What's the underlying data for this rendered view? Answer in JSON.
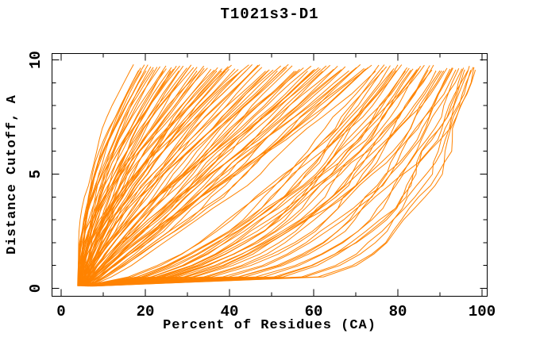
{
  "chart": {
    "title": "T1021s3-D1",
    "xlabel": "Percent of Residues (CA)",
    "ylabel": "Distance Cutoff, A"
  },
  "chart_data": {
    "type": "line",
    "title": "T1021s3-D1",
    "xlabel": "Percent of Residues (CA)",
    "ylabel": "Distance Cutoff, A",
    "legend": "none",
    "grid": false,
    "line_color": "#FF8300",
    "frame_color": "#000000",
    "background": "#ffffff",
    "x_axis": {
      "range": [
        -2.3,
        101.4
      ],
      "major_ticks": [
        0,
        20,
        40,
        60,
        80,
        100
      ],
      "minor_ticks": [
        10,
        30,
        50,
        70,
        90
      ],
      "tick_style": "inward-mirrored"
    },
    "y_axis": {
      "range": [
        -0.37,
        10.3
      ],
      "major_ticks": [
        0,
        5,
        10
      ],
      "minor_ticks": [
        1,
        2,
        3,
        4,
        6,
        7,
        8,
        9
      ],
      "tick_style": "inward-mirrored"
    },
    "curve_format": "Each curve is one predicted model: [end_pct_at_cutoff_9.8, shape_exponent, start_pct_at_cutoff_0.1, wiggle_phase]; percent(c) = start + (end-start)*((c-0.1)/(c_end-0.1))^shape, sampled at 0.5 A cutoff steps; curves converge near (5%, 0.2A) and fan out to 18-98% at the top",
    "n_curves": 132,
    "curves": [
      [
        17.2,
        2.25,
        3.9,
        0.7
      ],
      [
        18.4,
        2.05,
        4.3,
        2.1
      ],
      [
        19.1,
        1.95,
        4.0,
        3.6
      ],
      [
        19.8,
        2.1,
        4.6,
        5.2
      ],
      [
        20.6,
        1.88,
        4.2,
        1.4
      ],
      [
        21.3,
        1.75,
        5.0,
        4.8
      ],
      [
        22.0,
        1.92,
        4.4,
        0.3
      ],
      [
        22.8,
        1.7,
        4.9,
        2.9
      ],
      [
        23.5,
        1.85,
        4.1,
        5.7
      ],
      [
        24.2,
        1.62,
        5.3,
        1.8
      ],
      [
        25.0,
        1.78,
        4.5,
        4.1
      ],
      [
        25.9,
        1.55,
        5.6,
        0.9
      ],
      [
        26.7,
        1.72,
        4.2,
        3.2
      ],
      [
        27.4,
        1.6,
        4.8,
        5.9
      ],
      [
        28.2,
        1.82,
        4.0,
        2.4
      ],
      [
        29.0,
        1.5,
        5.8,
        4.6
      ],
      [
        29.9,
        1.66,
        4.3,
        1.1
      ],
      [
        30.7,
        1.45,
        5.2,
        3.8
      ],
      [
        31.5,
        1.73,
        4.6,
        0.5
      ],
      [
        32.3,
        1.52,
        5.5,
        2.7
      ],
      [
        33.1,
        1.68,
        4.1,
        5.4
      ],
      [
        34.0,
        1.42,
        5.9,
        1.6
      ],
      [
        34.8,
        1.58,
        4.4,
        4.3
      ],
      [
        35.6,
        1.36,
        6.1,
        0.2
      ],
      [
        36.4,
        1.63,
        4.7,
        3.0
      ],
      [
        37.2,
        1.4,
        5.4,
        5.6
      ],
      [
        38.0,
        1.56,
        4.2,
        2.2
      ],
      [
        38.9,
        1.33,
        6.0,
        4.9
      ],
      [
        39.7,
        1.49,
        4.8,
        1.3
      ],
      [
        40.5,
        1.61,
        4.3,
        3.5
      ],
      [
        41.3,
        1.38,
        5.7,
        0.8
      ],
      [
        42.1,
        1.53,
        4.5,
        2.6
      ],
      [
        43.0,
        1.3,
        6.2,
        5.1
      ],
      [
        43.8,
        1.46,
        4.9,
        1.9
      ],
      [
        44.6,
        1.57,
        4.2,
        4.4
      ],
      [
        45.4,
        1.35,
        5.5,
        0.4
      ],
      [
        18.9,
        2.15,
        4.1,
        2.8
      ],
      [
        21.9,
        1.98,
        4.6,
        5.5
      ],
      [
        24.9,
        1.8,
        4.3,
        1.2
      ],
      [
        27.9,
        1.65,
        5.1,
        3.9
      ],
      [
        30.9,
        1.55,
        4.4,
        0.6
      ],
      [
        33.9,
        1.47,
        5.3,
        2.5
      ],
      [
        36.9,
        1.44,
        4.7,
        5.8
      ],
      [
        39.9,
        1.37,
        5.0,
        1.7
      ],
      [
        42.9,
        1.41,
        4.4,
        4.2
      ],
      [
        45.9,
        1.32,
        5.6,
        0.1
      ],
      [
        20.2,
        2.0,
        4.0,
        3.3
      ],
      [
        26.2,
        1.69,
        4.8,
        5.3
      ],
      [
        32.2,
        1.5,
        4.5,
        2.0
      ],
      [
        38.2,
        1.39,
        5.2,
        4.7
      ],
      [
        46.8,
        1.28,
        5.0,
        1.5
      ],
      [
        47.7,
        1.22,
        5.8,
        3.7
      ],
      [
        48.6,
        1.31,
        4.6,
        0.9
      ],
      [
        49.5,
        1.18,
        6.2,
        2.8
      ],
      [
        50.4,
        1.26,
        4.9,
        5.2
      ],
      [
        51.3,
        1.14,
        5.5,
        1.0
      ],
      [
        52.2,
        1.24,
        4.7,
        3.4
      ],
      [
        53.1,
        1.1,
        6.4,
        5.9
      ],
      [
        54.0,
        1.2,
        5.1,
        2.3
      ],
      [
        54.9,
        1.07,
        5.9,
        4.5
      ],
      [
        55.8,
        1.17,
        4.8,
        0.7
      ],
      [
        56.7,
        1.04,
        6.1,
        2.9
      ],
      [
        57.6,
        1.15,
        5.2,
        5.6
      ],
      [
        58.5,
        1.01,
        6.6,
        1.8
      ],
      [
        59.4,
        1.12,
        4.9,
        4.0
      ],
      [
        60.3,
        0.99,
        5.7,
        0.3
      ],
      [
        61.2,
        1.09,
        5.3,
        2.6
      ],
      [
        62.1,
        0.96,
        6.3,
        5.0
      ],
      [
        63.0,
        1.06,
        5.0,
        1.4
      ],
      [
        63.9,
        0.94,
        6.7,
        3.6
      ],
      [
        64.8,
        1.04,
        5.4,
        5.8
      ],
      [
        65.7,
        0.92,
        6.0,
        2.1
      ],
      [
        66.6,
        1.02,
        5.1,
        4.4
      ],
      [
        67.5,
        0.9,
        6.5,
        0.6
      ],
      [
        68.4,
        1.0,
        5.5,
        3.1
      ],
      [
        69.3,
        0.88,
        6.2,
        5.5
      ],
      [
        70.2,
        0.98,
        5.2,
        1.9
      ],
      [
        71.1,
        0.86,
        6.8,
        4.1
      ],
      [
        72.0,
        0.96,
        5.6,
        0.2
      ],
      [
        72.9,
        0.85,
        6.3,
        2.7
      ],
      [
        73.8,
        0.95,
        5.3,
        5.1
      ],
      [
        74.7,
        0.83,
        6.9,
        1.6
      ],
      [
        47.2,
        1.25,
        5.4,
        3.8
      ],
      [
        53.6,
        1.13,
        5.0,
        0.8
      ],
      [
        60.0,
        1.03,
        5.8,
        3.0
      ],
      [
        66.2,
        0.93,
        5.5,
        5.4
      ],
      [
        72.4,
        0.87,
        6.1,
        2.2
      ],
      [
        49.0,
        1.21,
        4.8,
        4.6
      ],
      [
        55.4,
        1.1,
        5.6,
        1.1
      ],
      [
        61.6,
        1.0,
        5.2,
        3.5
      ],
      [
        75.5,
        0.58,
        5.7,
        0.5
      ],
      [
        76.4,
        0.54,
        6.4,
        2.9
      ],
      [
        77.3,
        0.6,
        5.4,
        5.3
      ],
      [
        78.2,
        0.5,
        7.0,
        1.7
      ],
      [
        79.1,
        0.56,
        5.9,
        4.0
      ],
      [
        80.0,
        0.47,
        6.6,
        0.4
      ],
      [
        80.9,
        0.53,
        5.6,
        2.8
      ],
      [
        81.8,
        0.45,
        7.2,
        5.2
      ],
      [
        82.7,
        0.51,
        6.0,
        1.5
      ],
      [
        83.6,
        0.42,
        6.8,
        3.9
      ],
      [
        84.5,
        0.49,
        5.8,
        0.9
      ],
      [
        85.4,
        0.4,
        7.4,
        3.3
      ],
      [
        86.3,
        0.47,
        6.2,
        5.7
      ],
      [
        87.2,
        0.38,
        7.0,
        2.0
      ],
      [
        88.1,
        0.45,
        6.1,
        4.4
      ],
      [
        89.0,
        0.36,
        7.6,
        0.8
      ],
      [
        89.9,
        0.43,
        6.4,
        3.2
      ],
      [
        90.8,
        0.34,
        7.2,
        5.6
      ],
      [
        91.7,
        0.41,
        6.3,
        1.9
      ],
      [
        76.8,
        0.55,
        6.0,
        4.3
      ],
      [
        79.6,
        0.5,
        6.5,
        0.6
      ],
      [
        82.2,
        0.46,
        6.1,
        3.0
      ],
      [
        84.9,
        0.44,
        6.9,
        5.4
      ],
      [
        87.6,
        0.39,
        6.2,
        2.3
      ],
      [
        90.3,
        0.35,
        7.3,
        4.7
      ],
      [
        78.7,
        0.52,
        5.8,
        1.2
      ],
      [
        83.1,
        0.46,
        6.6,
        3.6
      ],
      [
        88.5,
        0.37,
        6.3,
        5.9
      ],
      [
        92.4,
        0.3,
        6.8,
        2.4
      ],
      [
        93.1,
        0.27,
        7.5,
        4.8
      ],
      [
        93.8,
        0.32,
        6.5,
        1.3
      ],
      [
        94.5,
        0.24,
        7.8,
        3.7
      ],
      [
        95.2,
        0.29,
        6.9,
        0.1
      ],
      [
        95.9,
        0.22,
        7.3,
        2.5
      ],
      [
        96.6,
        0.26,
        7.0,
        4.9
      ],
      [
        97.3,
        0.19,
        8.0,
        1.4
      ],
      [
        97.9,
        0.23,
        7.1,
        3.8
      ],
      [
        98.4,
        0.17,
        8.3,
        0.2
      ],
      [
        92.9,
        0.28,
        6.7,
        5.0
      ],
      [
        95.6,
        0.21,
        7.6,
        2.6
      ],
      [
        97.0,
        0.18,
        7.4,
        5.5
      ],
      [
        98.1,
        0.16,
        7.9,
        1.0
      ]
    ]
  }
}
